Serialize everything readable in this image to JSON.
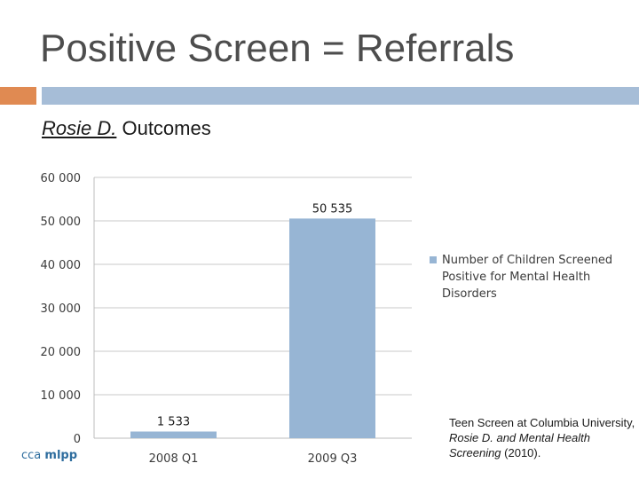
{
  "slide": {
    "title": "Positive Screen = Referrals",
    "subtitle_underlined": "Rosie D.",
    "subtitle_rest": " Outcomes"
  },
  "logo": {
    "prefix": "cca ",
    "bold": "mlpp"
  },
  "citation": {
    "line1": "Teen Screen at Columbia University, ",
    "italic1": "Rosie D. and Mental Health Screening",
    "tail": " (2010)."
  },
  "colors": {
    "bar": "#97b5d4",
    "accent_orange": "#e08a52",
    "accent_blue": "#a6bdd7",
    "grid": "#c8c8c8"
  },
  "chart_data": {
    "type": "bar",
    "categories": [
      "2008 Q1",
      "2009 Q3"
    ],
    "series": [
      {
        "name": "Number of Children Screened Positive for Mental Health Disorders",
        "values": [
          1533,
          50535
        ]
      }
    ],
    "data_labels": [
      "1 533",
      "50 535"
    ],
    "ylim": [
      0,
      60000
    ],
    "yticks": [
      0,
      10000,
      20000,
      30000,
      40000,
      50000,
      60000
    ],
    "ytick_labels": [
      "0",
      "10 000",
      "20 000",
      "30 000",
      "40 000",
      "50 000",
      "60 000"
    ],
    "grid": true,
    "legend": "right"
  }
}
